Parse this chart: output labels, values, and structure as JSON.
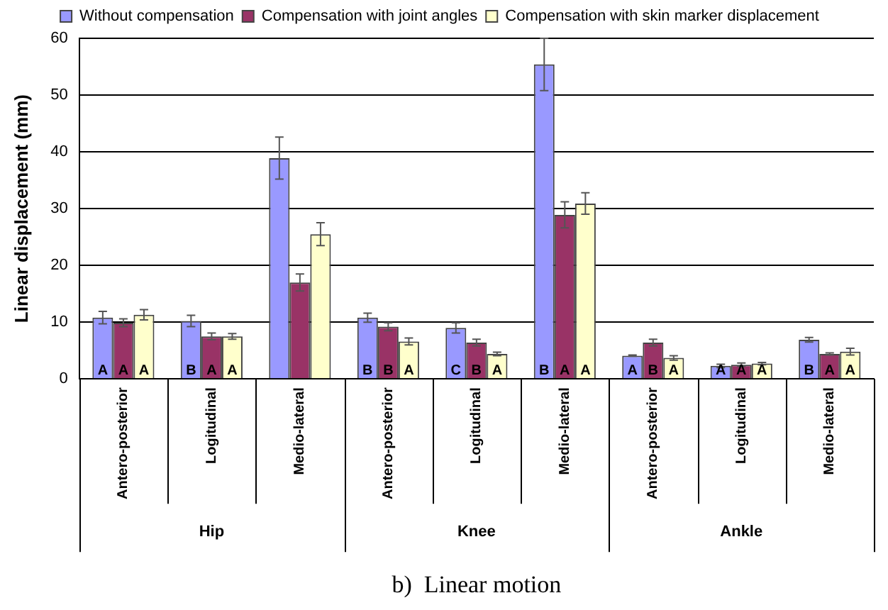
{
  "chart_data": {
    "type": "bar",
    "ylabel": "Linear displacement (mm)",
    "categories": [
      "Antero-posterior",
      "Logitudinal",
      "Medio-lateral",
      "Antero-posterior",
      "Logitudinal",
      "Medio-lateral",
      "Antero-posterior",
      "Logitudinal",
      "Medio-lateral"
    ],
    "series": [
      {
        "name": "Without compensation",
        "color": "#9999ff",
        "values": [
          10.8,
          10.2,
          38.9,
          10.8,
          9.0,
          55.4,
          4.1,
          2.3,
          6.9
        ],
        "errors": [
          1.1,
          1.0,
          3.7,
          0.8,
          0.9,
          4.6,
          0.1,
          0.3,
          0.4
        ],
        "value_labels": [
          "A",
          "B",
          null,
          "B",
          "C",
          "B",
          "A",
          "A",
          "B"
        ]
      },
      {
        "name": "Compensation with joint angles",
        "color": "#993366",
        "values": [
          9.9,
          7.5,
          17.0,
          9.2,
          6.4,
          28.9,
          6.4,
          2.5,
          4.4
        ],
        "errors": [
          0.7,
          0.6,
          1.5,
          0.7,
          0.6,
          2.3,
          0.6,
          0.3,
          0.2
        ],
        "value_labels": [
          "A",
          "A",
          null,
          "B",
          "B",
          "A",
          "B",
          "A",
          "A"
        ]
      },
      {
        "name": "Compensation with skin marker displacement",
        "color": "#ffffcc",
        "values": [
          11.3,
          7.5,
          25.5,
          6.6,
          4.4,
          30.9,
          3.7,
          2.7,
          4.8
        ],
        "errors": [
          0.9,
          0.5,
          2.0,
          0.6,
          0.3,
          1.9,
          0.4,
          0.2,
          0.6
        ],
        "value_labels": [
          "A",
          "A",
          null,
          "A",
          "A",
          "A",
          "A",
          "A",
          "A"
        ]
      }
    ],
    "ylim": [
      0,
      60
    ],
    "yticks": [
      0,
      10,
      20,
      30,
      40,
      50,
      60
    ],
    "grid": "y",
    "legend": "top",
    "annotations": [
      "Hip",
      "Knee",
      "Ankle",
      "b)  Linear motion"
    ]
  }
}
